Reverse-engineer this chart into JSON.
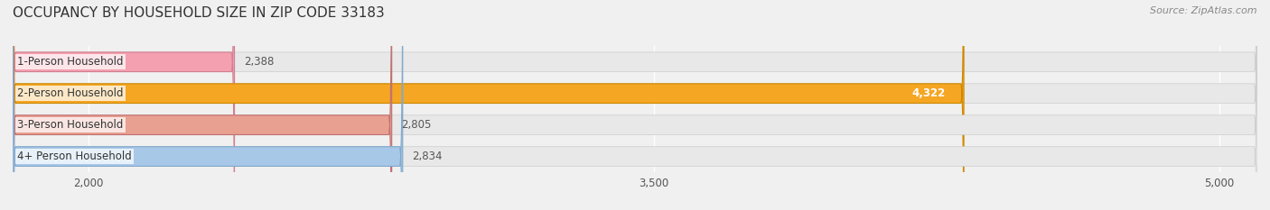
{
  "title": "OCCUPANCY BY HOUSEHOLD SIZE IN ZIP CODE 33183",
  "source": "Source: ZipAtlas.com",
  "categories": [
    "1-Person Household",
    "2-Person Household",
    "3-Person Household",
    "4+ Person Household"
  ],
  "values": [
    2388,
    4322,
    2805,
    2834
  ],
  "bar_colors": [
    "#f4a0b0",
    "#f5a623",
    "#e8a090",
    "#a8c8e8"
  ],
  "bar_edge_colors": [
    "#d08090",
    "#cc8800",
    "#c07070",
    "#80a8cc"
  ],
  "label_colors": [
    "#555555",
    "#ffffff",
    "#555555",
    "#555555"
  ],
  "xmin": 1800,
  "xmax": 5100,
  "xticks": [
    2000,
    3500,
    5000
  ],
  "background_color": "#f0f0f0",
  "bar_background_color": "#e8e8e8",
  "title_fontsize": 11,
  "source_fontsize": 8,
  "label_fontsize": 8.5,
  "value_fontsize": 8.5,
  "tick_fontsize": 8.5
}
